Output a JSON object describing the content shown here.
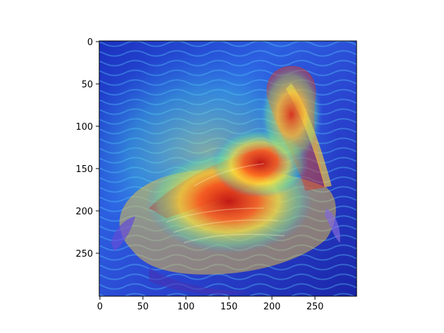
{
  "figure": {
    "type": "image-with-heatmap-overlay",
    "description_visible": false,
    "colormap": "jet",
    "colors": {
      "background": "#ffffff",
      "axis": "#000000",
      "water_dark": "#1a2fb8",
      "water_light": "#3fb0e8",
      "heat_low": "#2a3cff",
      "heat_mid": "#ffe63a",
      "heat_high": "#d51a1a"
    }
  },
  "axes": {
    "x": {
      "range": [
        0,
        299
      ],
      "ticks": [
        0,
        50,
        100,
        150,
        200,
        250
      ],
      "labels": [
        "0",
        "50",
        "100",
        "150",
        "200",
        "250"
      ]
    },
    "y": {
      "range": [
        0,
        299
      ],
      "ticks": [
        0,
        50,
        100,
        150,
        200,
        250
      ],
      "labels": [
        "0",
        "50",
        "100",
        "150",
        "200",
        "250"
      ]
    }
  },
  "image": {
    "subject_icon": "pelican-icon",
    "content": "pelican on water with heatmap"
  }
}
